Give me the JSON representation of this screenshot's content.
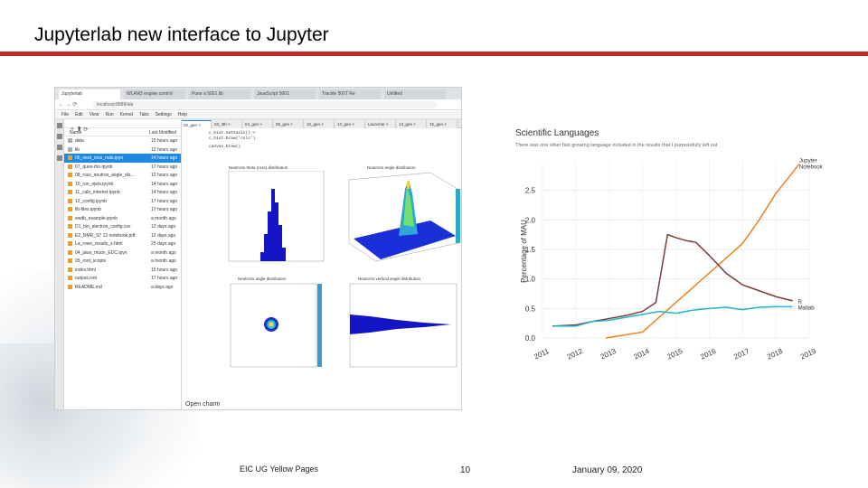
{
  "slide": {
    "title": "Jupyterlab new interface to Jupyter",
    "footer_left": "EIC UG Yellow Pages",
    "page_number": "10",
    "date": "January 09, 2020",
    "accent_color": "#c0292b"
  },
  "browser": {
    "tabs": [
      "Jupyterlab",
      "WLAM2 engine control",
      "Pune a 5001 lib",
      "JavaScript 5001",
      "Trackle 500T Re",
      "Untitled"
    ],
    "address": "localhost:8888/lab"
  },
  "jupyter": {
    "menu": [
      "File",
      "Edit",
      "View",
      "Run",
      "Kernel",
      "Tabs",
      "Settings",
      "Help"
    ],
    "file_browser": {
      "col_name": "Name",
      "col_modified": "Last Modified",
      "files": [
        {
          "name": "data",
          "modified": "15 hours ago",
          "folder": true
        },
        {
          "name": "lib",
          "modified": "12 hours ago",
          "folder": true
        },
        {
          "name": "06_neut_ross_nuts.ipyn",
          "modified": "14 hours ago",
          "folder": false,
          "selected": true
        },
        {
          "name": "07_ques-rho.ipynb",
          "modified": "17 hours ago",
          "folder": false
        },
        {
          "name": "08_ross_neutros_angle_dis...",
          "modified": "12 hours ago",
          "folder": false
        },
        {
          "name": "10_run_ejets.ipynb",
          "modified": "14 hours ago",
          "folder": false
        },
        {
          "name": "11_calo_interest.ipynb",
          "modified": "14 hours ago",
          "folder": false
        },
        {
          "name": "12_config.ipynb",
          "modified": "17 hours ago",
          "folder": false
        },
        {
          "name": "lib-files.ipynb",
          "modified": "17 hours ago",
          "folder": false
        },
        {
          "name": "ewdb_example.ipynb",
          "modified": "a month ago",
          "folder": false
        },
        {
          "name": "D1_bin_electron_config.csv",
          "modified": "12 days ago",
          "folder": false
        },
        {
          "name": "E2_NMR_S7 12 notebook.pdf",
          "modified": "12 days ago",
          "folder": false
        },
        {
          "name": "La_rows_results_s.html",
          "modified": "25 days ago",
          "folder": false
        },
        {
          "name": "04_jaws_muon_EDC.ipyn",
          "modified": "a month ago",
          "folder": false
        },
        {
          "name": "05_root_scripts",
          "modified": "a month ago",
          "folder": false
        },
        {
          "name": "index.html",
          "modified": "15 hours ago",
          "folder": false
        },
        {
          "name": "output.root",
          "modified": "17 hours ago",
          "folder": false
        },
        {
          "name": "README.md",
          "modified": "a days ago",
          "folder": false
        }
      ]
    },
    "notebook_tabs": [
      "02_gen",
      "03_4th",
      "04_gen",
      "05_gen",
      "10_gen",
      "12_gen",
      "Launcher",
      "13_gen",
      "15_gen"
    ],
    "code_lines": [
      "c_hist.GetXaxis()->",
      "c_hist.Draw('colz')",
      "canvas.Draw()"
    ],
    "plot_titles": [
      "Neutrons theta (ross) distribution",
      "Neutrons angle distribution",
      "Neutrons angle distribution",
      "Neutrons vertical angle distribution"
    ],
    "footer_text": "Open charm"
  },
  "chart_data": {
    "type": "line",
    "title": "Scientific Languages",
    "subtitle": "There was one other fast growing language included in the results that I purposefully left out",
    "ylabel": "Percentage of MAU",
    "ylim": [
      0,
      3.0
    ],
    "yticks": [
      "0.0",
      "0.5",
      "1.0",
      "1.5",
      "2.0",
      "2.5"
    ],
    "xticks": [
      "2011",
      "2012",
      "2013",
      "2014",
      "2015",
      "2016",
      "2017",
      "2018",
      "2019"
    ],
    "series": [
      {
        "name": "Jupyter Notebooks",
        "color": "#f0821e",
        "points": [
          [
            2012.9,
            0.0
          ],
          [
            2014.0,
            0.1
          ],
          [
            2014.6,
            0.4
          ],
          [
            2015.0,
            0.6
          ],
          [
            2015.5,
            0.85
          ],
          [
            2016.0,
            1.1
          ],
          [
            2016.5,
            1.35
          ],
          [
            2017.0,
            1.6
          ],
          [
            2017.5,
            2.0
          ],
          [
            2018.0,
            2.45
          ],
          [
            2018.5,
            2.8
          ],
          [
            2018.7,
            2.95
          ]
        ]
      },
      {
        "name": "R",
        "color": "#7b3b3b",
        "points": [
          [
            2011.3,
            0.2
          ],
          [
            2012.0,
            0.22
          ],
          [
            2012.5,
            0.28
          ],
          [
            2013.0,
            0.33
          ],
          [
            2013.5,
            0.38
          ],
          [
            2014.0,
            0.45
          ],
          [
            2014.4,
            0.6
          ],
          [
            2014.75,
            1.75
          ],
          [
            2015.0,
            1.7
          ],
          [
            2015.3,
            1.65
          ],
          [
            2015.6,
            1.62
          ],
          [
            2016.0,
            1.4
          ],
          [
            2016.5,
            1.1
          ],
          [
            2017.0,
            0.9
          ],
          [
            2017.5,
            0.8
          ],
          [
            2018.0,
            0.7
          ],
          [
            2018.5,
            0.63
          ]
        ]
      },
      {
        "name": "Matlab",
        "color": "#22b5c3",
        "points": [
          [
            2011.3,
            0.2
          ],
          [
            2012.0,
            0.2
          ],
          [
            2012.5,
            0.28
          ],
          [
            2013.0,
            0.3
          ],
          [
            2013.5,
            0.35
          ],
          [
            2014.0,
            0.4
          ],
          [
            2014.5,
            0.45
          ],
          [
            2015.0,
            0.42
          ],
          [
            2015.5,
            0.47
          ],
          [
            2016.0,
            0.5
          ],
          [
            2016.5,
            0.52
          ],
          [
            2017.0,
            0.48
          ],
          [
            2017.5,
            0.52
          ],
          [
            2018.0,
            0.53
          ],
          [
            2018.5,
            0.53
          ]
        ]
      }
    ],
    "grid": true
  }
}
